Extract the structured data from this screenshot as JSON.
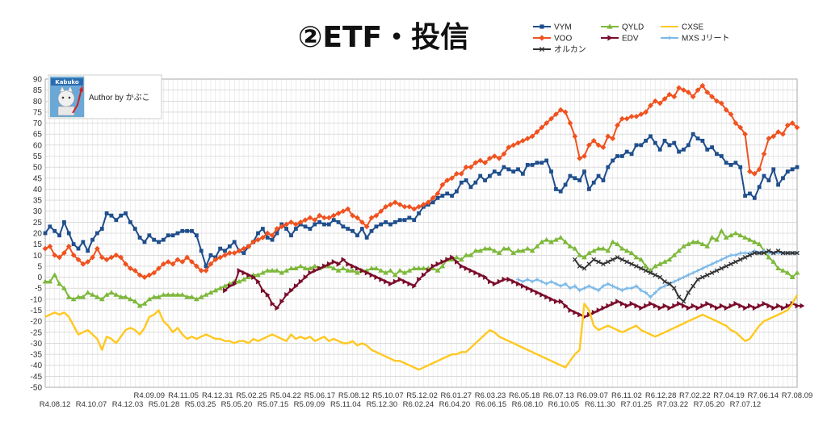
{
  "chart_data": {
    "type": "line",
    "title": "②ETF・投信",
    "author_label": "Author by かぶこ",
    "logo_text": "Kabuko",
    "ylim": [
      -50,
      90
    ],
    "ytick_step": 5,
    "grid": true,
    "legend_position": "top-right",
    "x_labels_top": [
      "R4.09.09",
      "R4.11.05",
      "R4.12.31",
      "R5.02.25",
      "R5.04.22",
      "R5.06.17",
      "R5.08.12",
      "R5.10.07",
      "R5.12.02",
      "R6.01.27",
      "R6.03.23",
      "R6.05.18",
      "R6.07.13",
      "R6.09.07",
      "R6.11.02",
      "R6.12.28",
      "R7.02.22",
      "R7.04.19",
      "R7.06.14",
      "R7.08.09"
    ],
    "x_labels_bottom": [
      "R4.08.12",
      "R4.10.07",
      "R4.12.03",
      "R5.01.28",
      "R5.03.25",
      "R5.05.20",
      "R5.07.15",
      "R5.09.09",
      "R5.11.04",
      "R5.12.30",
      "R6.02.24",
      "R6.04.20",
      "R6.06.15",
      "R6.08.10",
      "R6.10.05",
      "R6.11.30",
      "R7.01.25",
      "R7.03.22",
      "R7.05.20",
      "R7.07.12"
    ],
    "n_points": 160,
    "series": [
      {
        "name": "VYM",
        "color": "#1f4e8c",
        "marker": "square",
        "start": 0,
        "values": [
          20,
          23,
          21,
          19,
          25,
          20,
          15,
          13,
          16,
          12,
          17,
          20,
          22,
          29,
          28,
          26,
          28,
          29,
          25,
          22,
          18,
          16,
          19,
          17,
          16,
          17,
          19,
          19,
          20,
          21,
          21,
          21,
          19,
          12,
          5,
          10,
          9,
          13,
          12,
          14,
          16,
          12,
          11,
          14,
          16,
          20,
          22,
          18,
          17,
          20,
          24,
          22,
          19,
          22,
          24,
          23,
          22,
          24,
          25,
          24,
          24,
          26,
          25,
          23,
          22,
          21,
          19,
          22,
          18,
          21,
          23,
          24,
          25,
          24,
          25,
          26,
          26,
          27,
          26,
          29,
          32,
          33,
          34,
          36,
          37,
          38,
          37,
          39,
          43,
          44,
          41,
          43,
          46,
          44,
          46,
          48,
          47,
          50,
          49,
          48,
          49,
          47,
          51,
          51,
          52,
          52,
          53,
          48,
          40,
          39,
          42,
          46,
          45,
          44,
          48,
          40,
          43,
          46,
          44,
          50,
          53,
          55,
          55,
          57,
          56,
          60,
          60,
          62,
          64,
          61,
          58,
          62,
          60,
          61,
          57,
          58,
          60,
          65,
          63,
          62,
          58,
          59,
          56,
          55,
          52,
          51,
          52,
          50,
          37,
          38,
          36,
          41,
          46,
          44,
          49,
          42,
          45,
          48,
          49,
          50
        ]
      },
      {
        "name": "QYLD",
        "color": "#7db83a",
        "marker": "triangle",
        "start": 0,
        "values": [
          -2,
          -2,
          1,
          -3,
          -5,
          -9,
          -10,
          -9,
          -9,
          -7,
          -8,
          -9,
          -10,
          -8,
          -7,
          -8,
          -9,
          -9,
          -10,
          -11,
          -13,
          -12,
          -10,
          -9,
          -9,
          -8,
          -8,
          -8,
          -8,
          -8,
          -9,
          -9,
          -10,
          -9,
          -8,
          -7,
          -6,
          -5,
          -4,
          -3,
          -2,
          -2,
          -1,
          0,
          1,
          1,
          2,
          3,
          3,
          3,
          2,
          3,
          4,
          4,
          5,
          4,
          4,
          5,
          4,
          5,
          5,
          4,
          3,
          4,
          3,
          3,
          2,
          3,
          3,
          4,
          4,
          3,
          2,
          3,
          1,
          3,
          2,
          3,
          4,
          4,
          4,
          4,
          4,
          3,
          5,
          8,
          8,
          9,
          8,
          10,
          10,
          12,
          12,
          13,
          13,
          12,
          11,
          13,
          13,
          11,
          12,
          12,
          13,
          12,
          14,
          16,
          17,
          16,
          17,
          18,
          16,
          14,
          13,
          10,
          9,
          11,
          12,
          13,
          13,
          12,
          16,
          15,
          13,
          12,
          11,
          9,
          8,
          5,
          3,
          5,
          6,
          7,
          8,
          10,
          12,
          14,
          15,
          16,
          16,
          15,
          14,
          18,
          17,
          21,
          18,
          19,
          20,
          19,
          18,
          17,
          16,
          15,
          12,
          9,
          7,
          4,
          3,
          2,
          0,
          2
        ]
      },
      {
        "name": "VOO",
        "color": "#f0521f",
        "marker": "diamond",
        "start": 0,
        "values": [
          13,
          14,
          10,
          9,
          11,
          14,
          10,
          8,
          6,
          7,
          9,
          13,
          9,
          8,
          9,
          10,
          9,
          6,
          4,
          3,
          1,
          0,
          1,
          2,
          4,
          6,
          7,
          6,
          8,
          7,
          9,
          7,
          5,
          3,
          3,
          6,
          8,
          9,
          10,
          11,
          11,
          12,
          13,
          14,
          16,
          17,
          18,
          20,
          19,
          22,
          23,
          24,
          25,
          24,
          25,
          26,
          27,
          26,
          28,
          27,
          27,
          28,
          29,
          30,
          31,
          28,
          27,
          25,
          23,
          27,
          28,
          30,
          32,
          33,
          34,
          33,
          32,
          32,
          31,
          32,
          33,
          34,
          36,
          38,
          42,
          44,
          45,
          47,
          47,
          50,
          50,
          52,
          53,
          52,
          54,
          55,
          54,
          56,
          59,
          60,
          61,
          62,
          63,
          64,
          66,
          68,
          70,
          72,
          74,
          76,
          75,
          70,
          64,
          54,
          55,
          60,
          62,
          60,
          59,
          64,
          63,
          69,
          72,
          72,
          73,
          73,
          74,
          75,
          78,
          80,
          79,
          81,
          83,
          82,
          86,
          85,
          84,
          82,
          85,
          87,
          84,
          82,
          80,
          79,
          76,
          74,
          70,
          68,
          65,
          48,
          47,
          49,
          56,
          63,
          64,
          66,
          65,
          69,
          70,
          68
        ]
      },
      {
        "name": "EDV",
        "color": "#7a0d2b",
        "marker": "arrow",
        "start": 38,
        "values": [
          -6,
          -4,
          -3,
          3,
          2,
          1,
          0,
          -2,
          -6,
          -8,
          -12,
          -14,
          -11,
          -8,
          -6,
          -4,
          -2,
          0,
          2,
          3,
          4,
          5,
          6,
          7,
          6,
          8,
          6,
          5,
          4,
          3,
          2,
          1,
          0,
          -1,
          -2,
          -3,
          -2,
          -1,
          -2,
          -3,
          -4,
          -1,
          1,
          3,
          5,
          6,
          7,
          8,
          9,
          7,
          5,
          4,
          3,
          2,
          1,
          0,
          -2,
          -3,
          -2,
          -1,
          -1,
          -2,
          -3,
          -4,
          -5,
          -6,
          -7,
          -8,
          -9,
          -10,
          -11,
          -11,
          -13,
          -15,
          -16,
          -17,
          -18,
          -17,
          -16,
          -15,
          -14,
          -13,
          -12,
          -11,
          -12,
          -13,
          -12,
          -13,
          -14,
          -13,
          -12,
          -13,
          -14,
          -13,
          -14,
          -13,
          -12,
          -13,
          -14,
          -13,
          -14,
          -13,
          -12,
          -13,
          -14,
          -13,
          -14,
          -13,
          -12,
          -13,
          -14,
          -13,
          -14,
          -13,
          -12,
          -13,
          -14,
          -13,
          -14,
          -13,
          -12,
          -13,
          -13
        ]
      },
      {
        "name": "MXS Jリート",
        "color": "#7ab8e8",
        "marker": "cross",
        "start": 100,
        "values": [
          -1,
          -2,
          -1,
          -2,
          -1,
          -2,
          -3,
          -2,
          -3,
          -4,
          -3,
          -5,
          -4,
          -6,
          -5,
          -4,
          -5,
          -6,
          -4,
          -3,
          -4,
          -5,
          -6,
          -5,
          -5,
          -4,
          -6,
          -7,
          -9,
          -7,
          -5,
          -4,
          -3,
          -2,
          -1,
          0,
          1,
          2,
          3,
          4,
          5,
          6,
          7,
          8,
          9,
          10,
          10,
          11,
          11,
          11,
          12,
          11,
          12,
          11,
          11,
          11,
          11,
          11,
          11,
          11
        ]
      },
      {
        "name": "CXSE",
        "color": "#ffc820",
        "marker": "none",
        "start": 0,
        "values": [
          -18,
          -17,
          -16,
          -17,
          -16,
          -18,
          -22,
          -26,
          -25,
          -24,
          -26,
          -28,
          -33,
          -27,
          -28,
          -30,
          -27,
          -24,
          -23,
          -24,
          -26,
          -23,
          -18,
          -17,
          -15,
          -20,
          -22,
          -25,
          -23,
          -26,
          -28,
          -27,
          -28,
          -27,
          -26,
          -27,
          -28,
          -28,
          -29,
          -29,
          -30,
          -29,
          -29,
          -30,
          -28,
          -29,
          -28,
          -27,
          -26,
          -27,
          -28,
          -29,
          -26,
          -28,
          -27,
          -28,
          -27,
          -29,
          -28,
          -27,
          -29,
          -28,
          -29,
          -30,
          -30,
          -29,
          -31,
          -30,
          -31,
          -33,
          -34,
          -35,
          -36,
          -37,
          -38,
          -38,
          -39,
          -40,
          -41,
          -42,
          -41,
          -40,
          -39,
          -38,
          -37,
          -36,
          -35,
          -35,
          -34,
          -34,
          -32,
          -30,
          -28,
          -26,
          -24,
          -25,
          -27,
          -28,
          -29,
          -30,
          -31,
          -32,
          -33,
          -34,
          -35,
          -36,
          -37,
          -38,
          -39,
          -40,
          -41,
          -38,
          -35,
          -33,
          -12,
          -15,
          -22,
          -24,
          -23,
          -22,
          -23,
          -24,
          -25,
          -24,
          -23,
          -22,
          -24,
          -25,
          -26,
          -27,
          -26,
          -25,
          -24,
          -23,
          -22,
          -21,
          -20,
          -19,
          -18,
          -17,
          -18,
          -19,
          -20,
          -21,
          -22,
          -24,
          -25,
          -27,
          -29,
          -28,
          -25,
          -22,
          -20,
          -19,
          -18,
          -17,
          -16,
          -15,
          -12,
          -8
        ]
      },
      {
        "name": "オルカン",
        "color": "#333333",
        "marker": "x",
        "start": 112,
        "values": [
          8,
          5,
          4,
          6,
          8,
          7,
          6,
          7,
          8,
          9,
          8,
          7,
          6,
          5,
          4,
          3,
          2,
          1,
          0,
          -2,
          -3,
          -5,
          -9,
          -11,
          -7,
          -4,
          -1,
          0,
          1,
          2,
          3,
          4,
          5,
          6,
          7,
          8,
          9,
          10,
          11,
          11,
          11,
          12,
          11,
          12,
          11,
          11,
          11,
          11
        ]
      }
    ]
  }
}
